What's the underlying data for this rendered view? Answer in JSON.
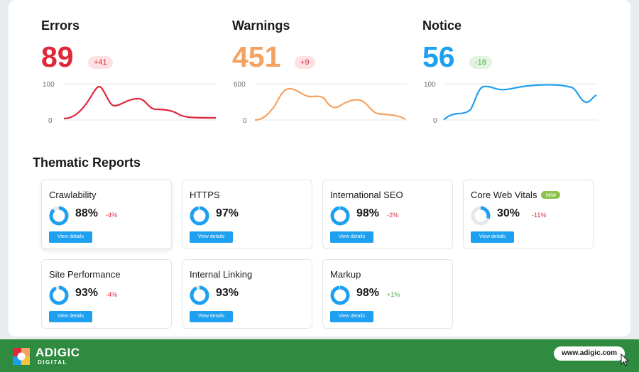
{
  "metrics": [
    {
      "title": "Errors",
      "value": "89",
      "delta": "+41",
      "color": "#e0283c",
      "delta_bg": "#fde2e4",
      "delta_color": "#e0283c",
      "ymax": "100",
      "ymin": "0"
    },
    {
      "title": "Warnings",
      "value": "451",
      "delta": "+9",
      "color": "#f4a261",
      "delta_bg": "#fde2e4",
      "delta_color": "#e0283c",
      "ymax": "600",
      "ymin": "0"
    },
    {
      "title": "Notice",
      "value": "56",
      "delta": "-18",
      "color": "#1ea0f0",
      "delta_bg": "#e2f4df",
      "delta_color": "#4caf50",
      "ymax": "100",
      "ymin": "0"
    }
  ],
  "thematic": {
    "title": "Thematic Reports",
    "button_label": "View details",
    "new_badge": "new",
    "reports": [
      {
        "name": "Crawlability",
        "percent": "88%",
        "change": "-4%",
        "change_type": "neg",
        "fraction": 0.88,
        "is_new": false
      },
      {
        "name": "HTTPS",
        "percent": "97%",
        "change": "",
        "change_type": "",
        "fraction": 0.97,
        "is_new": false
      },
      {
        "name": "International SEO",
        "percent": "98%",
        "change": "-2%",
        "change_type": "neg",
        "fraction": 0.98,
        "is_new": false
      },
      {
        "name": "Core Web Vitals",
        "percent": "30%",
        "change": "-11%",
        "change_type": "neg",
        "fraction": 0.3,
        "is_new": true
      },
      {
        "name": "Site Performance",
        "percent": "93%",
        "change": "-4%",
        "change_type": "neg",
        "fraction": 0.93,
        "is_new": false
      },
      {
        "name": "Internal Linking",
        "percent": "93%",
        "change": "",
        "change_type": "",
        "fraction": 0.93,
        "is_new": false
      },
      {
        "name": "Markup",
        "percent": "98%",
        "change": "+1%",
        "change_type": "pos",
        "fraction": 0.98,
        "is_new": false
      }
    ]
  },
  "footer": {
    "brand": "ADIGIC",
    "brand_sub": "DIGITAL",
    "url": "www.adigic.com"
  },
  "colors": {
    "accent": "#1ea0f0",
    "footer_bg": "#2e8b3f",
    "donut_track": "#e4e7eb"
  }
}
